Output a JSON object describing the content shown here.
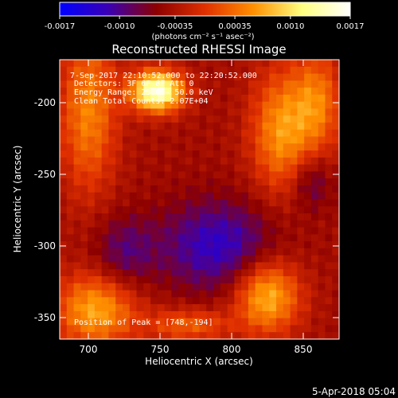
{
  "colorbar": {
    "ticks": [
      "-0.0017",
      "-0.0010",
      "-0.00035",
      "0.00035",
      "0.0010",
      "0.0017"
    ],
    "tick_values": [
      -0.0017,
      -0.001,
      -0.00035,
      0.00035,
      0.001,
      0.0017
    ],
    "range": [
      -0.0017,
      0.0017
    ],
    "unit_label": "(photons cm⁻² s⁻¹ asec⁻²)",
    "colors": [
      "#0000ff",
      "#3a00b4",
      "#8c0000",
      "#e03000",
      "#ff9000",
      "#ffff80",
      "#ffffff"
    ]
  },
  "chart_data": {
    "type": "heatmap",
    "title": "Reconstructed RHESSI Image",
    "xlabel": "Heliocentric X (arcsec)",
    "ylabel": "Heliocentric Y (arcsec)",
    "xlim": [
      680,
      875
    ],
    "ylim": [
      -365,
      -170
    ],
    "x_ticks": [
      700,
      750,
      800,
      850
    ],
    "y_ticks": [
      -350,
      -300,
      -250,
      -200
    ],
    "x_tick_labels": [
      "700",
      "750",
      "800",
      "850"
    ],
    "y_tick_labels": [
      "-350",
      "-300",
      "-250",
      "-200"
    ],
    "annotations": [
      "7-Sep-2017 22:10:52.000 to 22:20:52.000",
      "Detectors: 3F 6F 8F  Att 0",
      "Energy Range: 25.0 - 50.0 keV",
      "Clean    Total Counts: 2.07E+04"
    ],
    "peak_text": "Position of Peak = [748,-194]",
    "peak": [
      748,
      -194
    ],
    "blobs": [
      {
        "x": 748,
        "y": -192,
        "sx": 13,
        "sy": 10,
        "amp": 0.002
      },
      {
        "x": 700,
        "y": -205,
        "sx": 14,
        "sy": 40,
        "amp": 0.0009
      },
      {
        "x": 705,
        "y": -345,
        "sx": 20,
        "sy": 18,
        "amp": 0.0011
      },
      {
        "x": 825,
        "y": -335,
        "sx": 16,
        "sy": 18,
        "amp": 0.0012
      },
      {
        "x": 835,
        "y": -220,
        "sx": 15,
        "sy": 30,
        "amp": 0.001
      },
      {
        "x": 860,
        "y": -200,
        "sx": 12,
        "sy": 25,
        "amp": 0.0008
      },
      {
        "x": 770,
        "y": -355,
        "sx": 20,
        "sy": 8,
        "amp": 0.0007
      },
      {
        "x": 790,
        "y": -300,
        "sx": 28,
        "sy": 22,
        "amp": -0.0008
      },
      {
        "x": 725,
        "y": -305,
        "sx": 15,
        "sy": 18,
        "amp": -0.0005
      },
      {
        "x": 855,
        "y": -255,
        "sx": 10,
        "sy": 14,
        "amp": -0.0005
      }
    ]
  },
  "footer": {
    "timestamp": "5-Apr-2018 05:04"
  }
}
